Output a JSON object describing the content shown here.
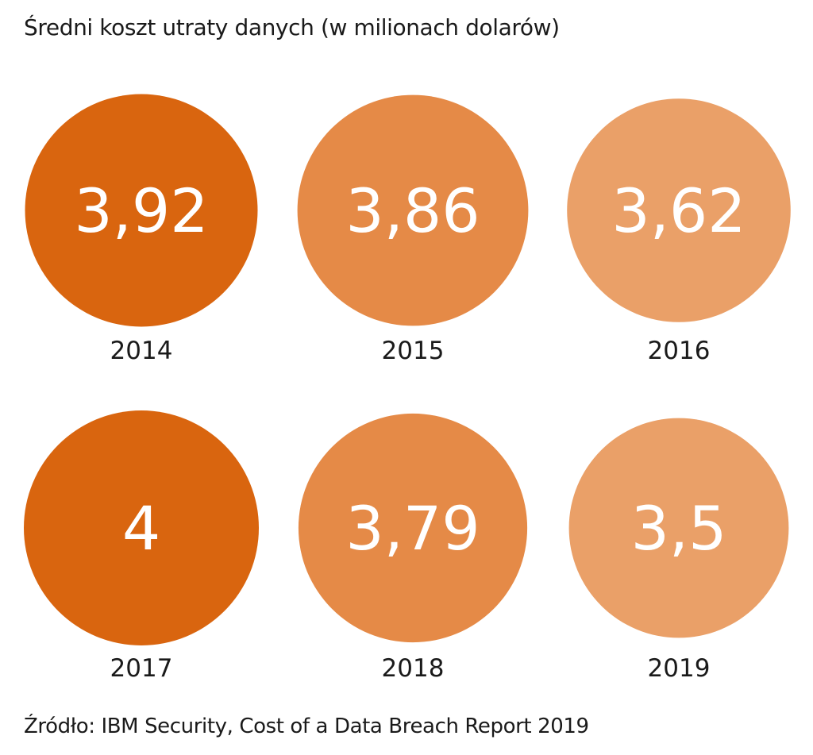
{
  "title": "Średni koszt utraty danych (w milionach dolarów)",
  "source": "Źródło: IBM Security, Cost of a Data Breach Report 2019",
  "chart_data": {
    "type": "bubble",
    "title": "Średni koszt utraty danych (w milionach dolarów)",
    "unit": "mln USD",
    "categories": [
      "2014",
      "2015",
      "2016",
      "2017",
      "2018",
      "2019"
    ],
    "values": [
      3.92,
      3.86,
      3.62,
      4,
      3.79,
      3.5
    ],
    "value_labels": [
      "3,92",
      "3,86",
      "3,62",
      "4",
      "3,79",
      "3,5"
    ],
    "colors": [
      "#d9650f",
      "#e58a47",
      "#eaa068",
      "#d9650f",
      "#e58a47",
      "#eaa068"
    ]
  }
}
